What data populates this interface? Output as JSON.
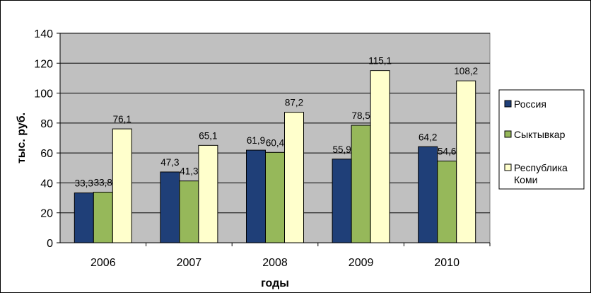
{
  "chart_data": {
    "type": "bar",
    "categories": [
      "2006",
      "2007",
      "2008",
      "2009",
      "2010"
    ],
    "series": [
      {
        "name": "Россия",
        "values": [
          33.3,
          47.3,
          61.9,
          55.9,
          64.2
        ],
        "labels": [
          "33,3",
          "47,3",
          "61,9",
          "55,9",
          "64,2"
        ],
        "color": "#1f3f78"
      },
      {
        "name": "Сыктывкар",
        "values": [
          33.8,
          41.3,
          60.4,
          78.5,
          54.6
        ],
        "labels": [
          "33,8",
          "41,3",
          "60,4",
          "78,5",
          "54,6"
        ],
        "color": "#96b85a"
      },
      {
        "name": [
          "Республика",
          "Коми"
        ],
        "values": [
          76.1,
          65.1,
          87.2,
          115.1,
          108.2
        ],
        "labels": [
          "76,1",
          "65,1",
          "87,2",
          "115,1",
          "108,2"
        ],
        "color": "#ffffcc"
      }
    ],
    "xlabel": "годы",
    "ylabel": "тыс. руб.",
    "ylim": [
      0,
      140
    ],
    "yticks": [
      "0",
      "20",
      "40",
      "60",
      "80",
      "100",
      "120",
      "140"
    ],
    "grid": true,
    "plot_background": "#c0c0c0",
    "legend_position": "right"
  }
}
